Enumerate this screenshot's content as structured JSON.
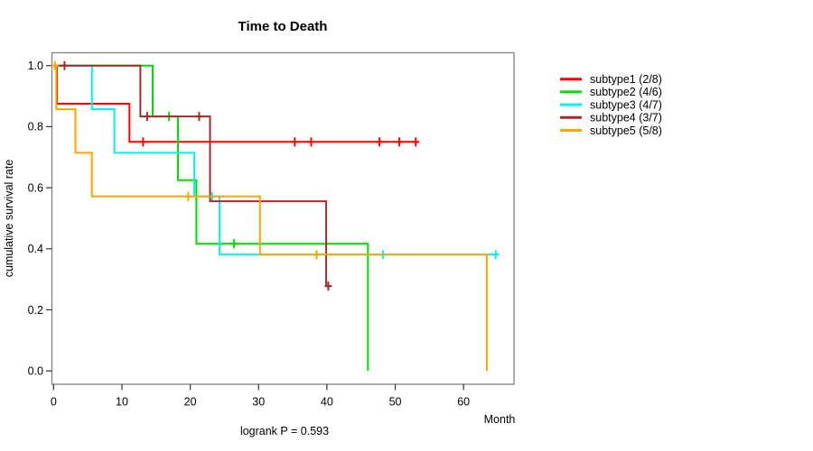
{
  "page": {
    "background": "#ffffff"
  },
  "chart_data": {
    "type": "line",
    "subtype": "kaplan-meier-step",
    "title": "Time to Death",
    "xlabel": "Month",
    "ylabel": "cumulative survival rate",
    "caption": "logrank P = 0.593",
    "grid": false,
    "legend_position": "right-outside",
    "box_color": "#808080",
    "tick_color": "#333333",
    "xlim": [
      -0.24,
      67.38
    ],
    "ylim": [
      -0.0437,
      1.042
    ],
    "x_ticks": [
      {
        "v": 0,
        "label": "0"
      },
      {
        "v": 10,
        "label": "10"
      },
      {
        "v": 20,
        "label": "20"
      },
      {
        "v": 30,
        "label": "30"
      },
      {
        "v": 40,
        "label": "40"
      },
      {
        "v": 50,
        "label": "50"
      },
      {
        "v": 60,
        "label": "60"
      }
    ],
    "y_ticks": [
      {
        "v": 1.0,
        "label": "1.0"
      },
      {
        "v": 0.8,
        "label": "0.8"
      },
      {
        "v": 0.6,
        "label": "0.6"
      },
      {
        "v": 0.4,
        "label": "0.4"
      },
      {
        "v": 0.2,
        "label": "0.2"
      },
      {
        "v": 0.0,
        "label": "0.0"
      }
    ],
    "series": [
      {
        "name": "subtype1",
        "legend_label": "subtype1 (2/8)",
        "events_ratio": "2/8",
        "color": "#FF0000",
        "steps": [
          [
            0,
            1.0
          ],
          [
            0.5,
            1.0
          ],
          [
            0.5,
            0.875
          ],
          [
            11.1,
            0.875
          ],
          [
            11.1,
            0.75
          ],
          [
            53.3,
            0.75
          ]
        ],
        "censors": [
          [
            13.1,
            0.75
          ],
          [
            35.3,
            0.75
          ],
          [
            37.7,
            0.75
          ],
          [
            47.7,
            0.75
          ],
          [
            50.6,
            0.75
          ],
          [
            53.0,
            0.75
          ]
        ]
      },
      {
        "name": "subtype2",
        "legend_label": "subtype2 (4/6)",
        "events_ratio": "4/6",
        "color": "#00DC00",
        "steps": [
          [
            0,
            1.0
          ],
          [
            14.5,
            1.0
          ],
          [
            14.5,
            0.8333
          ],
          [
            18.2,
            0.8333
          ],
          [
            18.2,
            0.625
          ],
          [
            20.9,
            0.625
          ],
          [
            20.9,
            0.4167
          ],
          [
            46.0,
            0.4167
          ],
          [
            46.0,
            0.0
          ]
        ],
        "censors": [
          [
            16.9,
            0.8333
          ],
          [
            26.4,
            0.4167
          ]
        ]
      },
      {
        "name": "subtype3",
        "legend_label": "subtype3 (4/7)",
        "events_ratio": "4/7",
        "color": "#00F0F0",
        "steps": [
          [
            0,
            1.0
          ],
          [
            5.6,
            1.0
          ],
          [
            5.6,
            0.8571
          ],
          [
            8.9,
            0.8571
          ],
          [
            8.9,
            0.7143
          ],
          [
            20.6,
            0.7143
          ],
          [
            20.6,
            0.5714
          ],
          [
            24.3,
            0.5714
          ],
          [
            24.3,
            0.381
          ],
          [
            64.7,
            0.381
          ]
        ],
        "censors": [
          [
            23.2,
            0.5714
          ],
          [
            48.2,
            0.381
          ],
          [
            64.7,
            0.381
          ]
        ]
      },
      {
        "name": "subtype4",
        "legend_label": "subtype4 (3/7)",
        "events_ratio": "3/7",
        "color": "#A52A2A",
        "steps": [
          [
            0,
            1.0
          ],
          [
            12.7,
            1.0
          ],
          [
            12.7,
            0.8333
          ],
          [
            22.9,
            0.8333
          ],
          [
            22.9,
            0.5556
          ],
          [
            39.9,
            0.5556
          ],
          [
            39.9,
            0.2778
          ],
          [
            40.6,
            0.2778
          ]
        ],
        "censors": [
          [
            1.6,
            1.0
          ],
          [
            13.7,
            0.8333
          ],
          [
            21.3,
            0.8333
          ],
          [
            40.2,
            0.2778
          ]
        ]
      },
      {
        "name": "subtype5",
        "legend_label": "subtype5 (5/8)",
        "events_ratio": "5/8",
        "color": "#FFA500",
        "steps": [
          [
            0,
            1.0
          ],
          [
            0.4,
            1.0
          ],
          [
            0.4,
            0.8571
          ],
          [
            3.2,
            0.8571
          ],
          [
            3.2,
            0.7143
          ],
          [
            5.6,
            0.7143
          ],
          [
            5.6,
            0.5714
          ],
          [
            30.2,
            0.5714
          ],
          [
            30.2,
            0.381
          ],
          [
            63.4,
            0.381
          ],
          [
            63.4,
            0.0
          ]
        ],
        "censors": [
          [
            0.2,
            1.0
          ],
          [
            19.7,
            0.5714
          ],
          [
            38.5,
            0.381
          ]
        ]
      }
    ]
  }
}
